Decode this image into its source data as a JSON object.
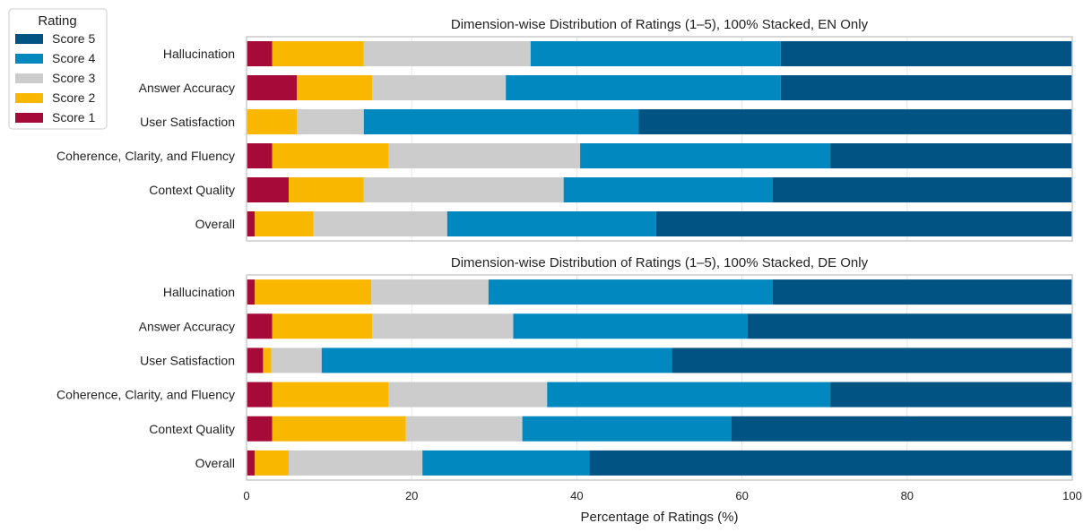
{
  "figure": {
    "legend_title": "Rating",
    "legend_placement": "upper-left outside",
    "xlabel": "Percentage of Ratings (%)"
  },
  "colors": {
    "Score 1": "#A50A38",
    "Score 2": "#F9B700",
    "Score 3": "#CCCCCC",
    "Score 4": "#0088BF",
    "Score 5": "#005383",
    "grid": "#E6E6E6",
    "frame": "#CCCCCC"
  },
  "chart_data": [
    {
      "type": "bar",
      "orientation": "horizontal",
      "stacked": "100%",
      "title": "Dimension-wise Distribution of Ratings (1–5), 100% Stacked, EN Only",
      "categories": [
        "Hallucination",
        "Answer Accuracy",
        "User Satisfaction",
        "Coherence, Clarity, and Fluency",
        "Context Quality",
        "Overall"
      ],
      "xlim": [
        0,
        100
      ],
      "xticks": [
        0,
        20,
        40,
        60,
        80,
        100
      ],
      "grid": true,
      "series": [
        {
          "name": "Score 1",
          "values": [
            3.1,
            6.1,
            0,
            3.1,
            5.1,
            1.0
          ]
        },
        {
          "name": "Score 2",
          "values": [
            11.1,
            9.1,
            6.1,
            14.1,
            9.1,
            7.1
          ]
        },
        {
          "name": "Score 3",
          "values": [
            20.2,
            16.2,
            8.1,
            23.2,
            24.2,
            16.2
          ]
        },
        {
          "name": "Score 4",
          "values": [
            30.3,
            33.3,
            33.3,
            30.3,
            25.3,
            25.3
          ]
        },
        {
          "name": "Score 5",
          "values": [
            35.3,
            35.3,
            52.5,
            29.3,
            36.3,
            50.4
          ]
        }
      ]
    },
    {
      "type": "bar",
      "orientation": "horizontal",
      "stacked": "100%",
      "title": "Dimension-wise Distribution of Ratings (1–5), 100% Stacked, DE Only",
      "categories": [
        "Hallucination",
        "Answer Accuracy",
        "User Satisfaction",
        "Coherence, Clarity, and Fluency",
        "Context Quality",
        "Overall"
      ],
      "xlim": [
        0,
        100
      ],
      "xticks": [
        0,
        20,
        40,
        60,
        80,
        100
      ],
      "grid": true,
      "series": [
        {
          "name": "Score 1",
          "values": [
            1.0,
            3.1,
            2.0,
            3.1,
            3.1,
            1.0
          ]
        },
        {
          "name": "Score 2",
          "values": [
            14.1,
            12.1,
            1.0,
            14.1,
            16.2,
            4.1
          ]
        },
        {
          "name": "Score 3",
          "values": [
            14.2,
            17.1,
            6.1,
            19.2,
            14.1,
            16.2
          ]
        },
        {
          "name": "Score 4",
          "values": [
            34.4,
            28.4,
            42.4,
            34.3,
            25.3,
            20.2
          ]
        },
        {
          "name": "Score 5",
          "values": [
            36.3,
            39.3,
            48.5,
            29.3,
            41.3,
            58.5
          ]
        }
      ]
    }
  ],
  "legend": {
    "entries": [
      "Score 5",
      "Score 4",
      "Score 3",
      "Score 2",
      "Score 1"
    ]
  }
}
